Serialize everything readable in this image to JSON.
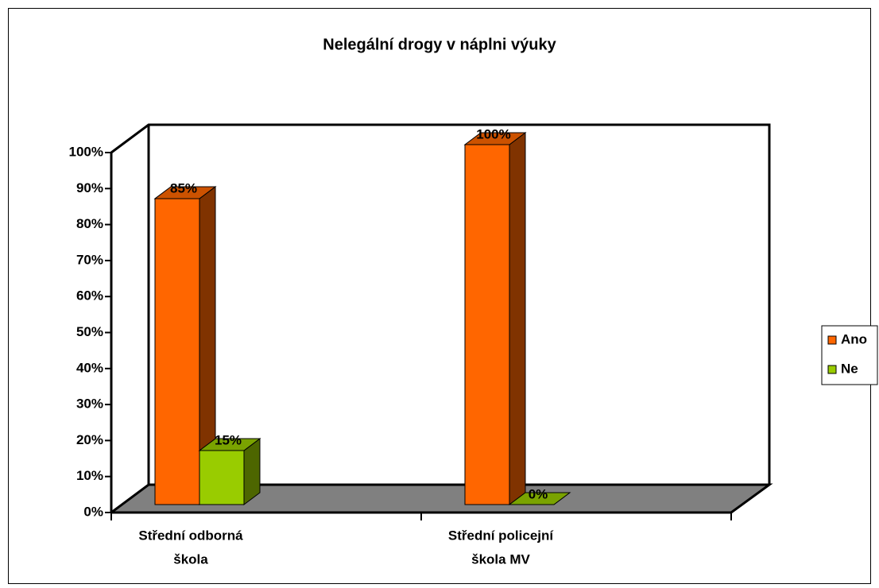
{
  "chart_data": {
    "type": "bar3d",
    "title": "Nelegální drogy v náplni výuky",
    "categories": [
      [
        "Střední odborná",
        "škola"
      ],
      [
        "Střední policejní",
        "škola MV"
      ]
    ],
    "series": [
      {
        "name": "Ano",
        "color": "#ff6600",
        "values": [
          85,
          100
        ],
        "value_labels": [
          "85%",
          "100%"
        ]
      },
      {
        "name": "Ne",
        "color": "#99cc00",
        "values": [
          15,
          0
        ],
        "value_labels": [
          "15%",
          "0%"
        ]
      }
    ],
    "ylim": [
      0,
      100
    ],
    "yticks": [
      {
        "value": 0,
        "label": "0%"
      },
      {
        "value": 10,
        "label": "10%"
      },
      {
        "value": 20,
        "label": "20%"
      },
      {
        "value": 30,
        "label": "30%"
      },
      {
        "value": 40,
        "label": "40%"
      },
      {
        "value": 50,
        "label": "50%"
      },
      {
        "value": 60,
        "label": "60%"
      },
      {
        "value": 70,
        "label": "70%"
      },
      {
        "value": 80,
        "label": "80%"
      },
      {
        "value": 90,
        "label": "90%"
      },
      {
        "value": 100,
        "label": "100%"
      }
    ],
    "legend": "right"
  }
}
